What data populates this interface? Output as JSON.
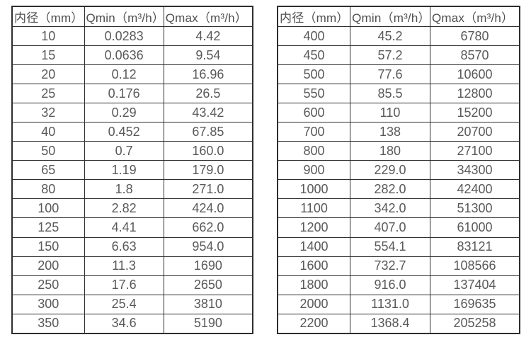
{
  "colors": {
    "background": "#ffffff",
    "border": "#2e2e2e",
    "cell_text": "#595959",
    "header_text": "#4f4f4f"
  },
  "tables": [
    {
      "name": "flow-rate-table-small-diameters",
      "headers": [
        "内径（mm）",
        "Qmin（m³/h）",
        "Qmax（m³/h）"
      ],
      "rows": [
        [
          "10",
          "0.0283",
          "4.42"
        ],
        [
          "15",
          "0.0636",
          "9.54"
        ],
        [
          "20",
          "0.12",
          "16.96"
        ],
        [
          "25",
          "0.176",
          "26.5"
        ],
        [
          "32",
          "0.29",
          "43.42"
        ],
        [
          "40",
          "0.452",
          "67.85"
        ],
        [
          "50",
          "0.7",
          "160.0"
        ],
        [
          "65",
          "1.19",
          "179.0"
        ],
        [
          "80",
          "1.8",
          "271.0"
        ],
        [
          "100",
          "2.82",
          "424.0"
        ],
        [
          "125",
          "4.41",
          "662.0"
        ],
        [
          "150",
          "6.63",
          "954.0"
        ],
        [
          "200",
          "11.3",
          "1690"
        ],
        [
          "250",
          "17.6",
          "2650"
        ],
        [
          "300",
          "25.4",
          "3810"
        ],
        [
          "350",
          "34.6",
          "5190"
        ]
      ]
    },
    {
      "name": "flow-rate-table-large-diameters",
      "headers": [
        "内径（mm）",
        "Qmin（m³/h）",
        "Qmax（m³/h）"
      ],
      "rows": [
        [
          "400",
          "45.2",
          "6780"
        ],
        [
          "450",
          "57.2",
          "8570"
        ],
        [
          "500",
          "77.6",
          "10600"
        ],
        [
          "550",
          "85.5",
          "12800"
        ],
        [
          "600",
          "110",
          "15200"
        ],
        [
          "700",
          "138",
          "20700"
        ],
        [
          "800",
          "180",
          "27100"
        ],
        [
          "900",
          "229.0",
          "34300"
        ],
        [
          "1000",
          "282.0",
          "42400"
        ],
        [
          "1100",
          "342.0",
          "51300"
        ],
        [
          "1200",
          "407.0",
          "61000"
        ],
        [
          "1400",
          "554.1",
          "83121"
        ],
        [
          "1600",
          "732.7",
          "108566"
        ],
        [
          "1800",
          "916.0",
          "137404"
        ],
        [
          "2000",
          "1131.0",
          "169635"
        ],
        [
          "2200",
          "1368.4",
          "205258"
        ]
      ]
    }
  ]
}
